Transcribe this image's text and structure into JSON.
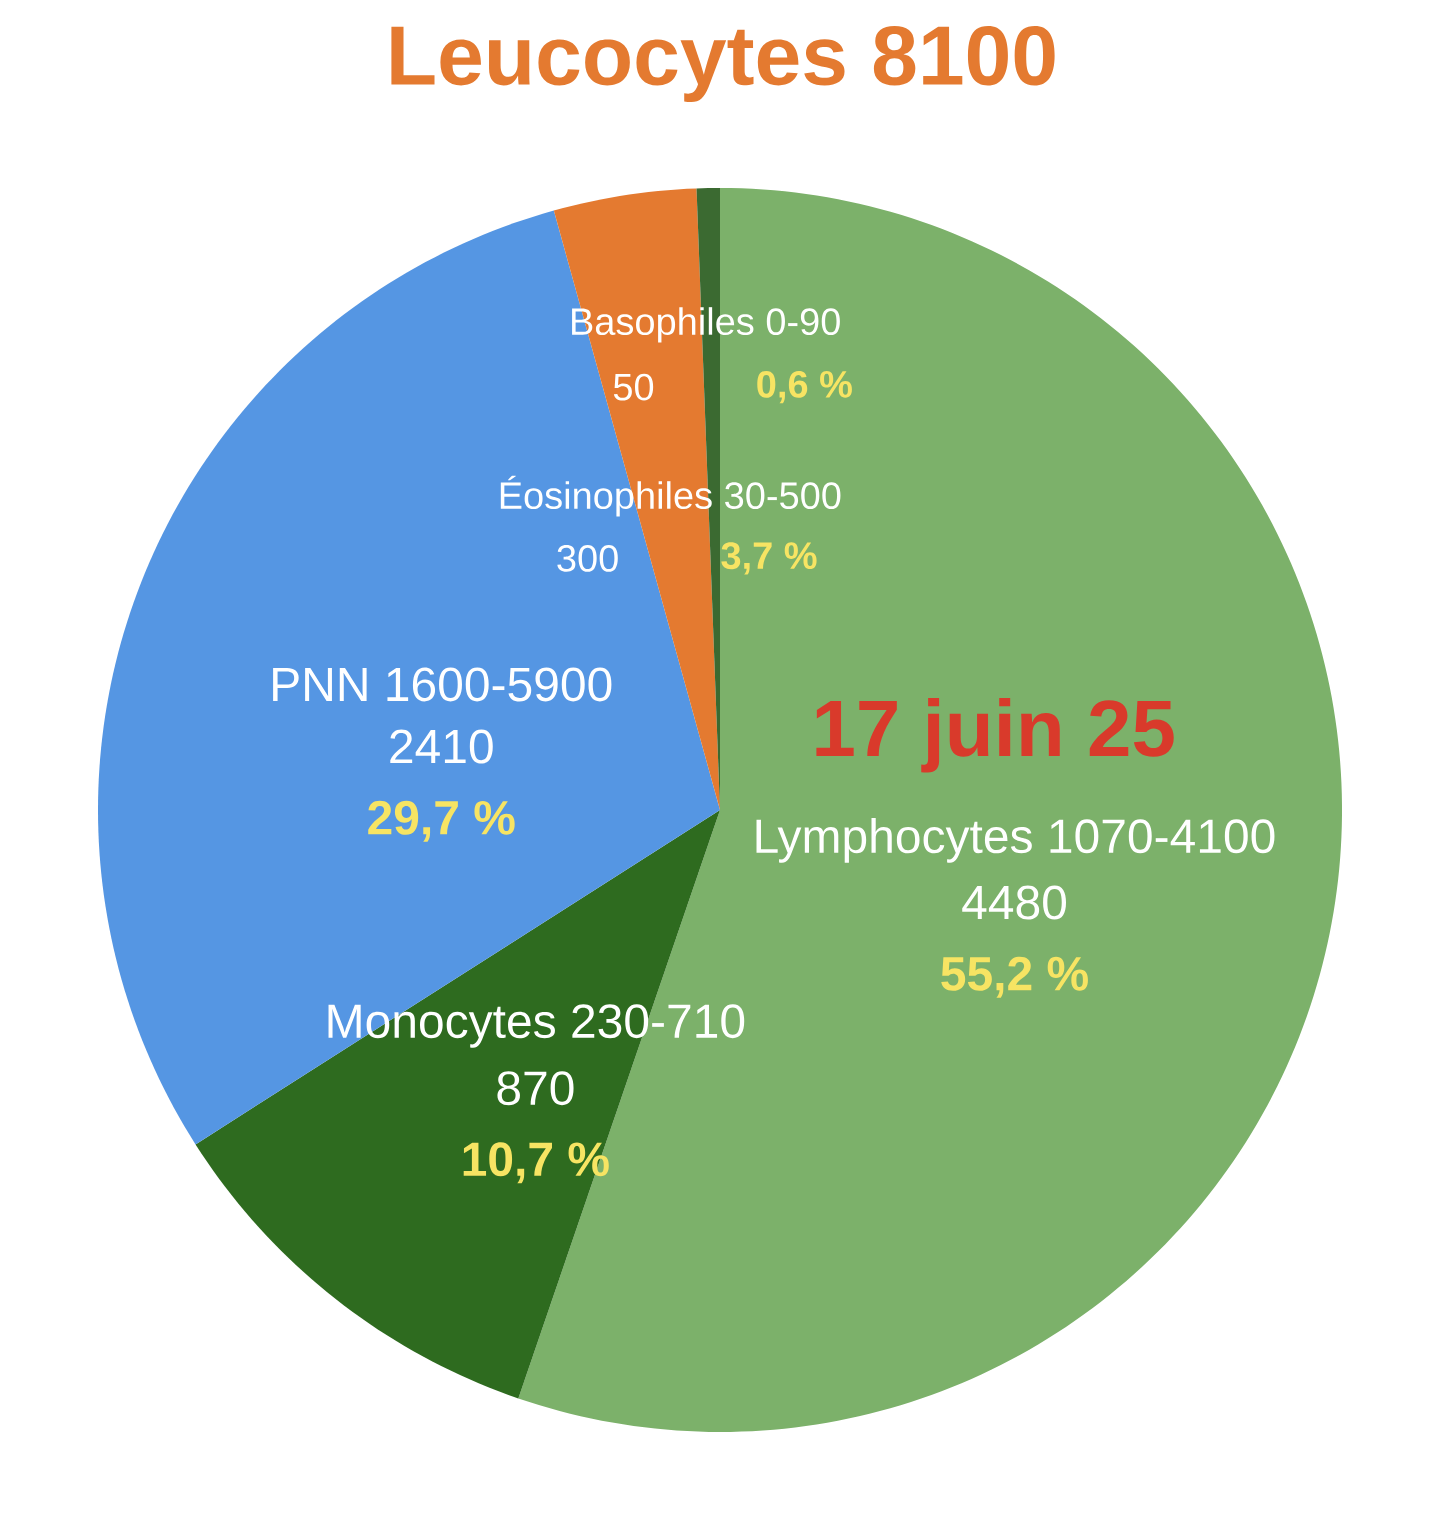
{
  "chart_data": {
    "type": "pie",
    "title": "Leucocytes 8100",
    "categories": [
      "Lymphocytes 1070-4100",
      "Monocytes 230-710",
      "PNN 1600-5900",
      "Éosinophiles 30-500",
      "Basophiles 0-90"
    ],
    "values": [
      55.2,
      10.7,
      29.7,
      3.7,
      0.6
    ],
    "colors": [
      "#7cb16a",
      "#2e6b1f",
      "#5596e3",
      "#e47a30",
      "#3b6a31"
    ],
    "value_labels": [
      "55,2 %",
      "10,7 %",
      "29,7 %",
      "3,7 %",
      "0,6 %"
    ],
    "annotations": [
      {
        "text": "4480",
        "x": "Lymphocytes 1070-4100"
      },
      {
        "text": "870",
        "x": "Monocytes 230-710"
      },
      {
        "text": "2410",
        "x": "PNN 1600-5900"
      },
      {
        "text": "300",
        "x": "Éosinophiles 30-500"
      },
      {
        "text": "50",
        "x": "Basophiles 0-90"
      },
      "17 juin 25"
    ]
  }
}
